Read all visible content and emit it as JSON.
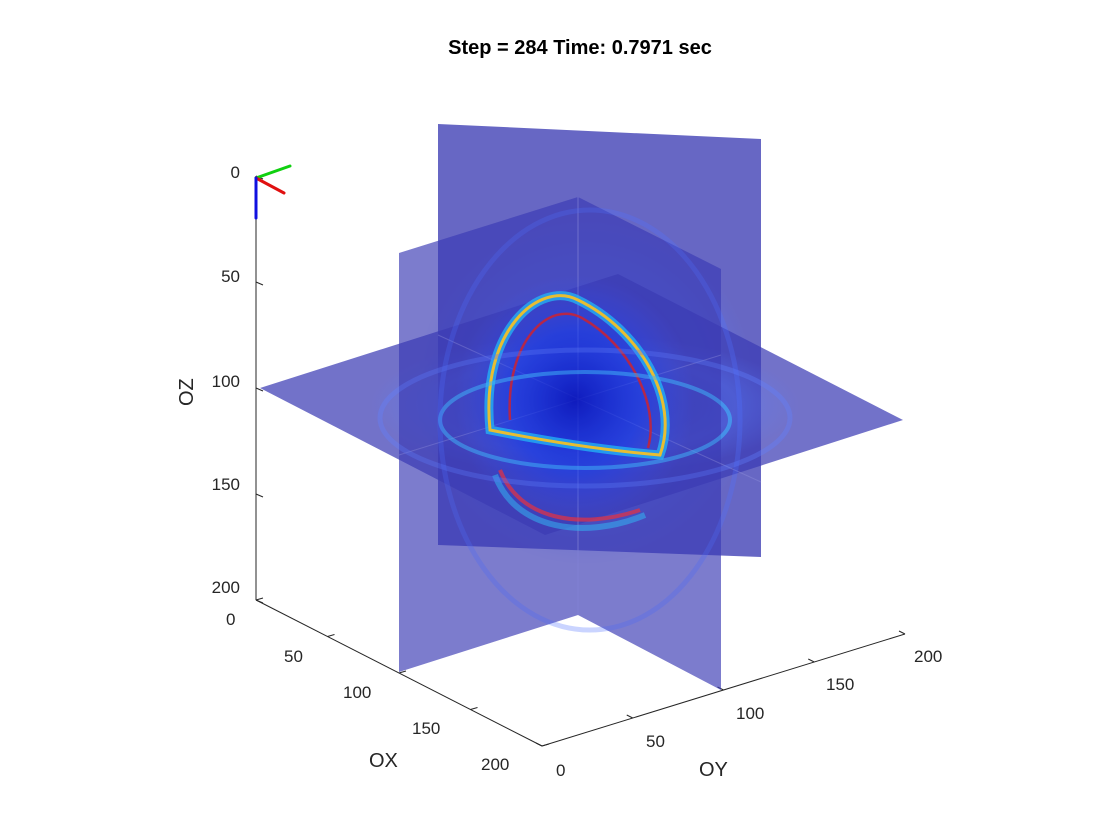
{
  "chart_data": {
    "type": "3d-slice",
    "title": "Step = 284 Time: 0.7971 sec",
    "xlabel": "OX",
    "ylabel": "OY",
    "zlabel": "OZ",
    "x_ticks": [
      0,
      50,
      100,
      150,
      200
    ],
    "y_ticks": [
      0,
      50,
      100,
      150,
      200
    ],
    "z_ticks": [
      0,
      50,
      100,
      150,
      200
    ],
    "xlim": [
      0,
      200
    ],
    "ylim": [
      0,
      200
    ],
    "zlim": [
      0,
      200
    ],
    "z_direction": "reversed",
    "slices": [
      "x = 100",
      "y = 100",
      "z = 100"
    ],
    "colors": {
      "slice_fill": "#3c3cb4",
      "wave_core": "#0000b4",
      "orientation_x": "#e01010",
      "orientation_y": "#10d010",
      "orientation_z": "#1010e0"
    }
  }
}
